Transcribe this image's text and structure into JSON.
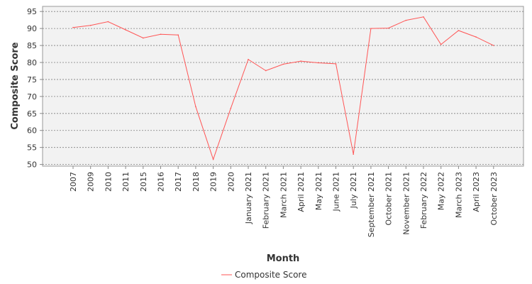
{
  "chart_data": {
    "type": "line",
    "xlabel": "Month",
    "ylabel": "Composite Score",
    "ylim": [
      49.5,
      96.5
    ],
    "yticks": [
      50,
      55,
      60,
      65,
      70,
      75,
      80,
      85,
      90,
      95
    ],
    "grid": true,
    "legend_position": "bottom",
    "categories": [
      "2007",
      "2009",
      "2010",
      "2011",
      "2015",
      "2016",
      "2017",
      "2018",
      "2019",
      "2020",
      "January 2021",
      "February 2021",
      "March 2021",
      "April 2021",
      "May 2021",
      "June 2021",
      "July 2021",
      "September 2021",
      "October 2021",
      "November 2021",
      "February 2022",
      "May 2022",
      "March 2023",
      "April 2023",
      "October 2023"
    ],
    "series": [
      {
        "name": "Composite Score",
        "color": "#ff5555",
        "values": [
          90.3,
          90.9,
          92.0,
          89.6,
          87.2,
          88.3,
          88.1,
          67.0,
          51.5,
          66.5,
          80.9,
          77.6,
          79.5,
          80.4,
          79.9,
          79.6,
          53.0,
          90.0,
          90.1,
          92.4,
          93.4,
          85.3,
          89.4,
          87.5,
          85.0
        ]
      }
    ]
  }
}
